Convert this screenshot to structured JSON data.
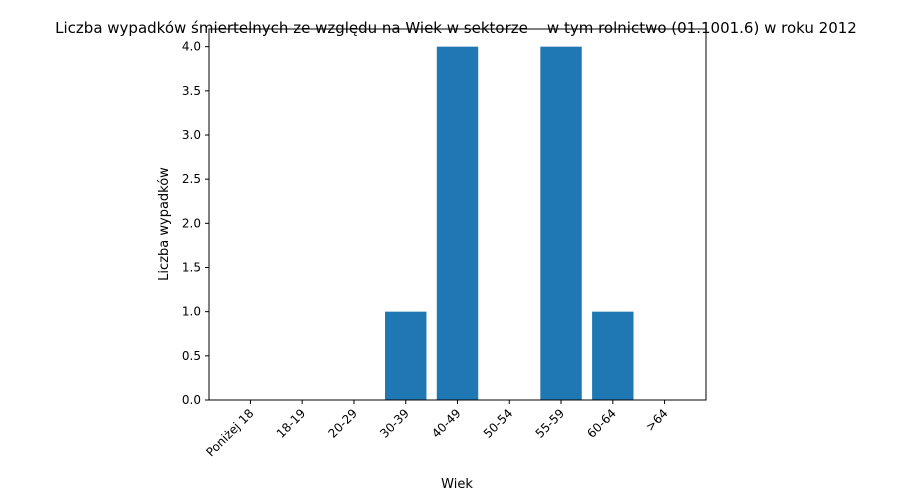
{
  "chart_data": {
    "type": "bar",
    "title": "Liczba wypadków śmiertelnych ze względu na Wiek w sektorze    w tym rolnictwo (01.1001.6) w roku 2012",
    "xlabel": "Wiek",
    "ylabel": "Liczba wypadków",
    "categories": [
      "Poniżej 18",
      "18-19",
      "20-29",
      "30-39",
      "40-49",
      "50-54",
      "55-59",
      "60-64",
      ">64"
    ],
    "values": [
      0,
      0,
      0,
      1,
      4,
      0,
      4,
      1,
      0
    ],
    "ylim": [
      0,
      4.2
    ],
    "yticks": [
      "0.0",
      "0.5",
      "1.0",
      "1.5",
      "2.0",
      "2.5",
      "3.0",
      "3.5",
      "4.0"
    ],
    "grid": false,
    "bar_color": "#1f77b4"
  }
}
